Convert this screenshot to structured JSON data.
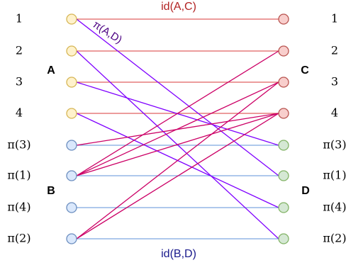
{
  "title_top": "id(A,C)",
  "title_bottom": "id(B,D)",
  "diag_label": "π(A,D)",
  "group_labels": {
    "A": "A",
    "B": "B",
    "C": "C",
    "D": "D"
  },
  "left_labels": [
    "1",
    "2",
    "3",
    "4",
    "π(3)",
    "π(1)",
    "π(4)",
    "π(2)"
  ],
  "right_labels": [
    "1",
    "2",
    "3",
    "4",
    "π(3)",
    "π(1)",
    "π(4)",
    "π(2)"
  ],
  "colors": {
    "yellow_fill": "#fff2cc",
    "yellow_stroke": "#d6b656",
    "blue_fill": "#dae8fc",
    "blue_stroke": "#6c8ebf",
    "red_fill": "#f8cecc",
    "red_stroke": "#b85450",
    "green_fill": "#d5e8d4",
    "green_stroke": "#82b366",
    "id_ac_line": "#e06060",
    "id_bd_line": "#7ea6e0",
    "purple_line": "#7f00ff",
    "magenta_line": "#cc0066",
    "top_label": "#b22222",
    "bottom_label": "#1a1a8c",
    "diag_label": "#4b0082"
  },
  "edges": {
    "id_ac": [
      [
        0,
        0
      ],
      [
        1,
        1
      ],
      [
        2,
        2
      ],
      [
        3,
        3
      ]
    ],
    "id_bd": [
      [
        4,
        4
      ],
      [
        5,
        5
      ],
      [
        6,
        6
      ],
      [
        7,
        7
      ]
    ],
    "purple": [
      [
        0,
        5
      ],
      [
        1,
        7
      ],
      [
        2,
        4
      ],
      [
        3,
        6
      ]
    ],
    "magenta": [
      [
        4,
        3
      ],
      [
        5,
        1
      ],
      [
        5,
        2
      ],
      [
        5,
        3
      ],
      [
        7,
        2
      ],
      [
        7,
        3
      ]
    ]
  }
}
